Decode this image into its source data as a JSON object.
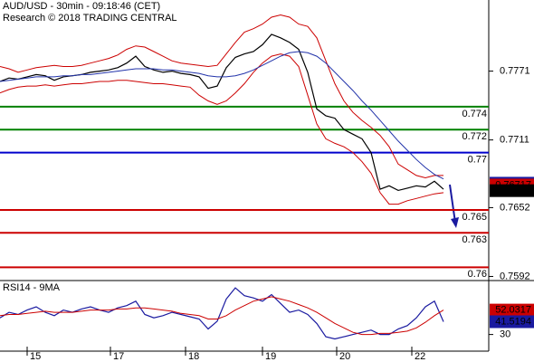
{
  "chart_data": [
    {
      "type": "line",
      "title": "AUD/USD - 30min - 09:18:46 (CET)",
      "subtitle": "Research © 2018 TRADING CENTRAL",
      "x": [
        0,
        1,
        2,
        3,
        4,
        5,
        6,
        7,
        8,
        9,
        10,
        11,
        12,
        13,
        14,
        15,
        16,
        17,
        18,
        19,
        20,
        21,
        22,
        23,
        24,
        25,
        26,
        27,
        28,
        29,
        30,
        31,
        32,
        33,
        34,
        35,
        36,
        37,
        38,
        39,
        40,
        41,
        42,
        43,
        44,
        45,
        46,
        47,
        48,
        49
      ],
      "xlim": [
        0,
        54
      ],
      "xticks": [
        {
          "value": 3,
          "label": "15"
        },
        {
          "value": 12.2,
          "label": "17"
        },
        {
          "value": 20.5,
          "label": "18"
        },
        {
          "value": 29,
          "label": "19"
        },
        {
          "value": 37.2,
          "label": "20"
        },
        {
          "value": 45.5,
          "label": "22"
        }
      ],
      "ylim": [
        0.759,
        0.7833
      ],
      "yticks": [
        0.7771,
        0.7711,
        0.7652,
        0.7592
      ],
      "series": [
        {
          "color": "#000000",
          "values": [
            0.7762,
            0.7765,
            0.7764,
            0.7766,
            0.7768,
            0.7767,
            0.7763,
            0.7766,
            0.7767,
            0.7768,
            0.777,
            0.7771,
            0.7772,
            0.7774,
            0.7778,
            0.7784,
            0.7775,
            0.7772,
            0.777,
            0.7771,
            0.7769,
            0.7768,
            0.7766,
            0.7756,
            0.7758,
            0.7774,
            0.7783,
            0.7786,
            0.7788,
            0.7794,
            0.7803,
            0.78,
            0.7796,
            0.779,
            0.777,
            0.7738,
            0.7732,
            0.773,
            0.772,
            0.7716,
            0.7712,
            0.77,
            0.7668,
            0.7671,
            0.7667,
            0.7669,
            0.7671,
            0.767,
            0.7675,
            0.7668
          ]
        },
        {
          "color": "#cc0000",
          "values": [
            0.7775,
            0.7773,
            0.777,
            0.7772,
            0.7774,
            0.7775,
            0.7776,
            0.7775,
            0.7775,
            0.7776,
            0.7778,
            0.778,
            0.7782,
            0.7785,
            0.779,
            0.7793,
            0.7792,
            0.7788,
            0.7784,
            0.778,
            0.7778,
            0.7777,
            0.7776,
            0.7775,
            0.7776,
            0.7786,
            0.7796,
            0.7805,
            0.7808,
            0.7812,
            0.7818,
            0.782,
            0.7818,
            0.7812,
            0.781,
            0.78,
            0.778,
            0.776,
            0.7745,
            0.7735,
            0.7728,
            0.7722,
            0.7715,
            0.7705,
            0.769,
            0.7685,
            0.768,
            0.7678,
            0.768,
            0.768
          ]
        },
        {
          "color": "#cc0000",
          "values": [
            0.7752,
            0.7755,
            0.7757,
            0.7758,
            0.7758,
            0.7759,
            0.7758,
            0.7759,
            0.776,
            0.776,
            0.7761,
            0.7762,
            0.7762,
            0.7763,
            0.7763,
            0.7762,
            0.7761,
            0.776,
            0.776,
            0.7759,
            0.7758,
            0.7757,
            0.775,
            0.7745,
            0.7742,
            0.7745,
            0.7752,
            0.776,
            0.777,
            0.7778,
            0.7784,
            0.7786,
            0.7784,
            0.7775,
            0.775,
            0.7725,
            0.7712,
            0.7708,
            0.7705,
            0.77,
            0.7692,
            0.7682,
            0.7665,
            0.7655,
            0.7655,
            0.7658,
            0.766,
            0.7662,
            0.7664,
            0.7665
          ]
        },
        {
          "color": "#2233aa",
          "values": [
            0.7762,
            0.7763,
            0.7764,
            0.7765,
            0.7766,
            0.7766,
            0.7766,
            0.7767,
            0.7767,
            0.7768,
            0.7768,
            0.7769,
            0.777,
            0.7771,
            0.7772,
            0.7773,
            0.7773,
            0.7773,
            0.7772,
            0.7772,
            0.7771,
            0.777,
            0.7769,
            0.7767,
            0.7766,
            0.7766,
            0.7767,
            0.7769,
            0.7772,
            0.7776,
            0.778,
            0.7784,
            0.7787,
            0.7788,
            0.7787,
            0.7784,
            0.7778,
            0.777,
            0.7762,
            0.7754,
            0.7745,
            0.7737,
            0.7728,
            0.7719,
            0.771,
            0.7702,
            0.7694,
            0.7687,
            0.7681,
            0.7677
          ]
        }
      ],
      "hlines": [
        {
          "value": 0.774,
          "color": "#008000"
        },
        {
          "value": 0.772,
          "color": "#008000"
        },
        {
          "value": 0.77,
          "color": "#0000cc"
        },
        {
          "value": 0.765,
          "color": "#cc0000"
        },
        {
          "value": 0.763,
          "color": "#cc0000"
        },
        {
          "value": 0.76,
          "color": "#cc0000"
        }
      ],
      "price_markers": [
        {
          "value": 0.76733,
          "color": "#1a1aa0"
        },
        {
          "value": 0.76717,
          "color": "#cc0000"
        },
        {
          "value": 0.76668,
          "color": "#000000"
        }
      ]
    },
    {
      "type": "line",
      "title": "RSI14 - 9MA",
      "x": [
        0,
        1,
        2,
        3,
        4,
        5,
        6,
        7,
        8,
        9,
        10,
        11,
        12,
        13,
        14,
        15,
        16,
        17,
        18,
        19,
        20,
        21,
        22,
        23,
        24,
        25,
        26,
        27,
        28,
        29,
        30,
        31,
        32,
        33,
        34,
        35,
        36,
        37,
        38,
        39,
        40,
        41,
        42,
        43,
        44,
        45,
        46,
        47,
        48,
        49
      ],
      "xlim": [
        0,
        54
      ],
      "ylim": [
        15,
        77
      ],
      "yticks": [
        30
      ],
      "series": [
        {
          "color": "#1a1aa0",
          "values": [
            45,
            50,
            48,
            52,
            55,
            50,
            47,
            52,
            50,
            53,
            55,
            52,
            50,
            54,
            56,
            60,
            48,
            45,
            47,
            50,
            48,
            46,
            44,
            35,
            42,
            62,
            72,
            65,
            63,
            60,
            66,
            58,
            50,
            52,
            48,
            40,
            28,
            26,
            28,
            30,
            32,
            34,
            30,
            30,
            35,
            38,
            45,
            55,
            60,
            41.5194
          ]
        },
        {
          "color": "#cc0000",
          "values": [
            47,
            48,
            48,
            49,
            50,
            51,
            50,
            50,
            50,
            51,
            52,
            52,
            52,
            53,
            53,
            54,
            54,
            53,
            52,
            51,
            49,
            48,
            47,
            44,
            44,
            47,
            52,
            56,
            60,
            62,
            64,
            62,
            60,
            57,
            54,
            50,
            45,
            40,
            36,
            32,
            30,
            30,
            31,
            31,
            32,
            33,
            36,
            41,
            47,
            52.0317
          ]
        }
      ],
      "price_markers": [
        {
          "value": 52.0317,
          "color": "#cc0000"
        },
        {
          "value": 41.5194,
          "color": "#1a1aa0"
        }
      ]
    }
  ]
}
